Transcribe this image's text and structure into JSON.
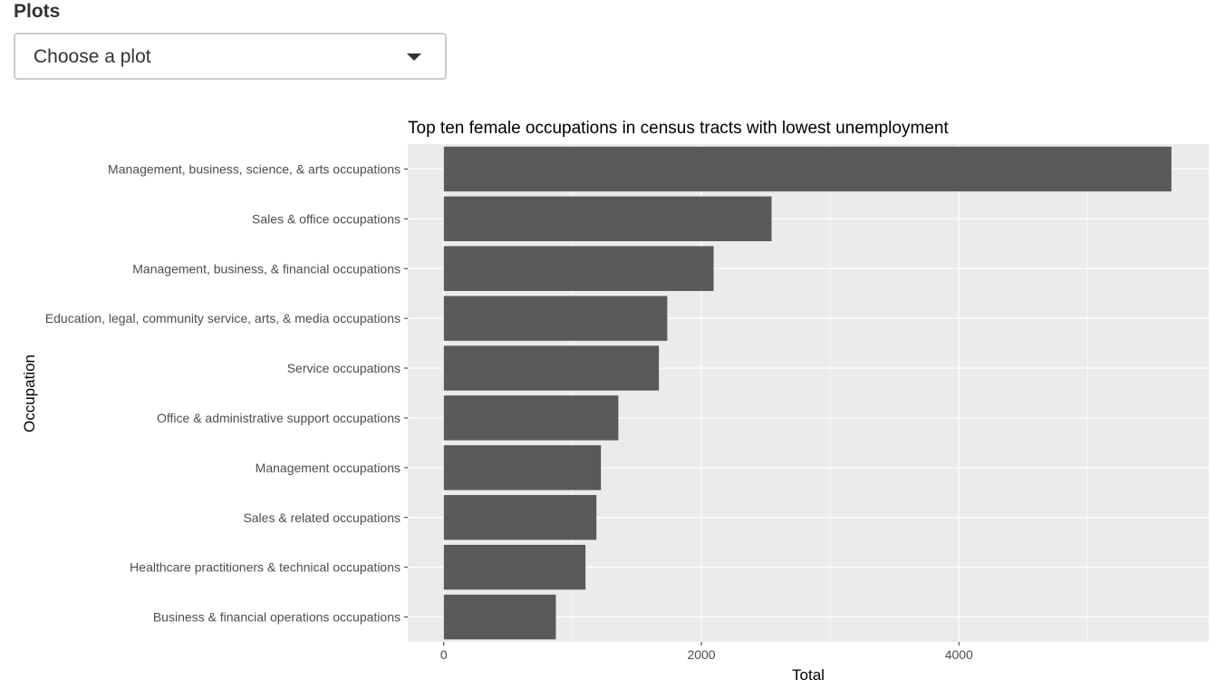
{
  "section": {
    "title": "Plots"
  },
  "plot_select": {
    "value": "Choose a plot"
  },
  "colors": {
    "panel": "#ebebeb",
    "grid": "#ffffff",
    "bar": "#595959",
    "axis_text": "#4d4d4d"
  },
  "chart_data": {
    "type": "bar",
    "orientation": "horizontal",
    "title": "Top ten female occupations in census tracts with lowest unemployment",
    "xlabel": "Total",
    "ylabel": "Occupation",
    "xlim": [
      -280,
      5940
    ],
    "xticks": [
      0,
      2000,
      4000
    ],
    "grid": true,
    "categories": [
      "Management, business, science, & arts occupations",
      "Sales & office occupations",
      "Management, business, & financial occupations",
      "Education, legal, community service, arts, & media occupations",
      "Service occupations",
      "Office & administrative support occupations",
      "Management occupations",
      "Sales & related occupations",
      "Healthcare practitioners & technical occupations",
      "Business & financial operations occupations"
    ],
    "values": [
      5650,
      2545,
      2095,
      1735,
      1670,
      1355,
      1220,
      1185,
      1100,
      870
    ]
  }
}
